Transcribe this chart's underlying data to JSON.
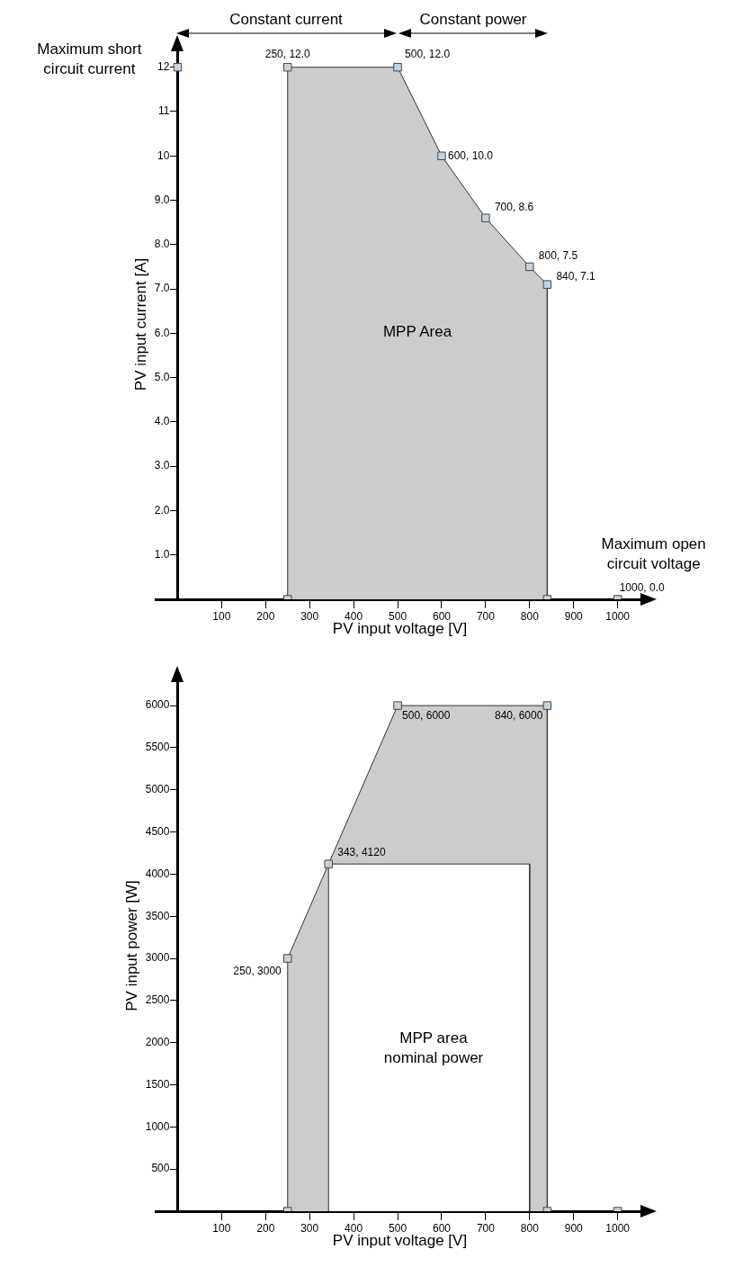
{
  "chart_data": [
    {
      "type": "area",
      "xlabel": "PV input voltage [V]",
      "ylabel": "PV input current [A]",
      "xlim": [
        -50,
        1060
      ],
      "ylim": [
        0,
        12.4
      ],
      "xticks": [
        100,
        200,
        300,
        400,
        500,
        600,
        700,
        800,
        900,
        1000
      ],
      "yticks": [
        {
          "value": 1,
          "label": "1.0"
        },
        {
          "value": 2,
          "label": "2.0"
        },
        {
          "value": 3,
          "label": "3.0"
        },
        {
          "value": 4,
          "label": "4.0"
        },
        {
          "value": 5,
          "label": "5.0"
        },
        {
          "value": 6,
          "label": "6.0"
        },
        {
          "value": 7,
          "label": "7.0"
        },
        {
          "value": 8,
          "label": "8.0"
        },
        {
          "value": 9,
          "label": "9.0"
        },
        {
          "value": 10,
          "label": "10"
        },
        {
          "value": 11,
          "label": "11"
        },
        {
          "value": 12,
          "label": "12"
        }
      ],
      "grid": false,
      "series": [
        {
          "color": "#cccccc",
          "x": [
            250,
            250,
            500,
            600,
            700,
            800,
            840,
            840
          ],
          "values": [
            0,
            12,
            12,
            10,
            8.6,
            7.5,
            7.1,
            0
          ]
        },
        {
          "type": "scatter",
          "marker": "square",
          "color": "#c5d3de",
          "x": [
            0,
            250,
            500,
            600,
            700,
            800,
            840,
            250,
            840,
            1000
          ],
          "values": [
            12,
            12,
            12,
            10,
            8.6,
            7.5,
            7.1,
            0,
            0,
            0
          ]
        }
      ],
      "annotations": [
        {
          "text": "Maximum short circuit current",
          "x": 0,
          "y": 12
        },
        {
          "text": "Maximum open circuit voltage",
          "x": 1000,
          "y": 0
        },
        "MPP Area",
        {
          "text": "250, 12.0",
          "x": 250,
          "y": 12
        },
        {
          "text": "500, 12.0",
          "x": 500,
          "y": 12
        },
        {
          "text": "600, 10.0",
          "x": 600,
          "y": 10
        },
        {
          "text": "700, 8.6",
          "x": 700,
          "y": 8.6
        },
        {
          "text": "800, 7.5",
          "x": 800,
          "y": 7.5
        },
        {
          "text": "840, 7.1",
          "x": 840,
          "y": 7.1
        },
        {
          "text": "1000, 0.0",
          "x": 1000,
          "y": 0
        },
        "Constant current",
        "Constant power"
      ]
    },
    {
      "type": "area",
      "xlabel": "PV input voltage [V]",
      "ylabel": "PV input power [W]",
      "xlim": [
        -50,
        1060
      ],
      "ylim": [
        0,
        6300
      ],
      "xticks": [
        100,
        200,
        300,
        400,
        500,
        600,
        700,
        800,
        900,
        1000
      ],
      "yticks": [
        500,
        1000,
        1500,
        2000,
        2500,
        3000,
        3500,
        4000,
        4500,
        5000,
        5500,
        6000
      ],
      "grid": false,
      "series": [
        {
          "color": "#cccccc",
          "x": [
            250,
            250,
            343,
            500,
            840,
            840
          ],
          "values": [
            0,
            3000,
            4120,
            6000,
            6000,
            0
          ]
        },
        {
          "color": "#ffffff",
          "x": [
            343,
            343,
            800,
            800
          ],
          "values": [
            0,
            4120,
            4120,
            0
          ]
        },
        {
          "type": "scatter",
          "marker": "square",
          "color": "#c5d3de",
          "x": [
            250,
            343,
            500,
            840,
            250,
            840,
            1000
          ],
          "values": [
            3000,
            4120,
            6000,
            6000,
            0,
            0,
            0
          ]
        }
      ],
      "annotations": [
        "MPP area nominal power",
        {
          "text": "250, 3000",
          "x": 250,
          "y": 3000
        },
        {
          "text": "343, 4120",
          "x": 343,
          "y": 4120
        },
        {
          "text": "500, 6000",
          "x": 500,
          "y": 6000
        },
        {
          "text": "840, 6000",
          "x": 840,
          "y": 6000
        }
      ]
    }
  ]
}
